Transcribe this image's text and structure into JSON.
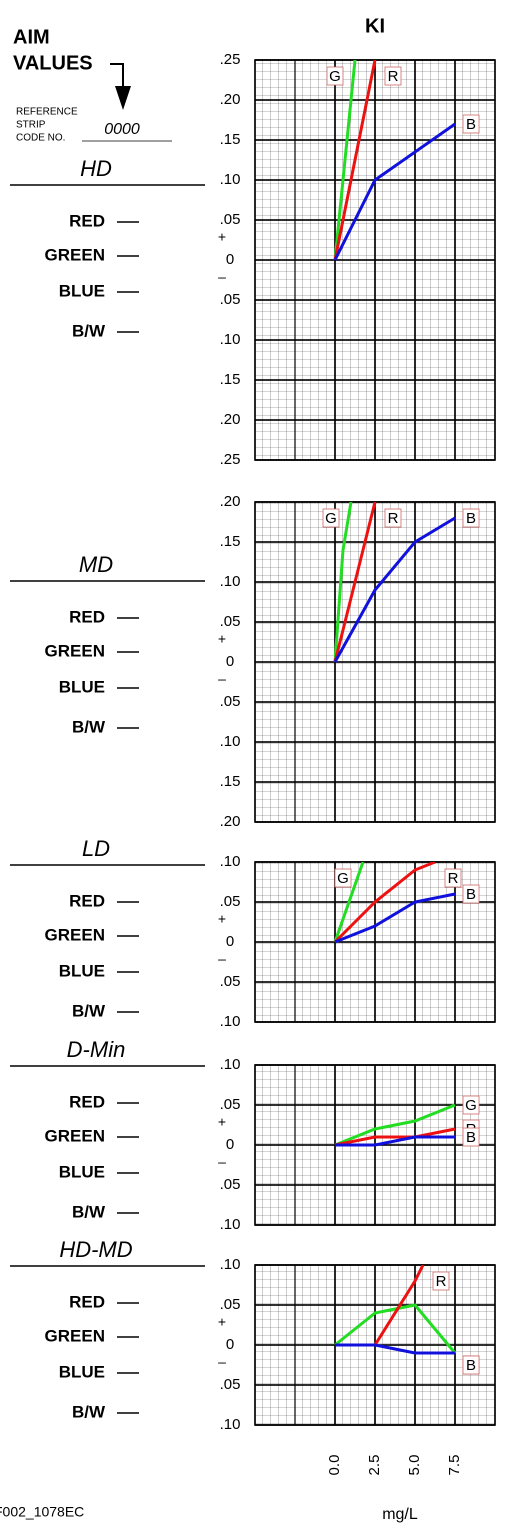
{
  "title": "KI",
  "x_label": "mg/L",
  "figure_id": "F002_1078EC",
  "aim_values": [
    "AIM",
    "VALUES"
  ],
  "reference_strip": [
    "REFERENCE",
    "STRIP",
    "CODE NO."
  ],
  "code_no": "0000",
  "row_labels": [
    "RED",
    "GREEN",
    "BLUE",
    "B/W"
  ],
  "sign_labels": [
    "+",
    "–"
  ],
  "xlim": [
    -5,
    10
  ],
  "xticks": [
    {
      "value": 0,
      "label": "0.0"
    },
    2.5,
    {
      "value": 5,
      "label": "5.0"
    },
    7.5
  ],
  "chart_data": [
    {
      "type": "line",
      "title": "HD",
      "ylim": [
        -0.25,
        0.25
      ],
      "yticks": [
        {
          "value": 0.25,
          "label": ".25"
        },
        {
          "value": 0.2,
          "label": ".20"
        },
        {
          "value": 0.15,
          "label": ".15"
        },
        {
          "value": 0.1,
          "label": ".10"
        },
        {
          "value": 0.05,
          "label": ".05"
        },
        0,
        {
          "value": -0.05,
          "label": ".05"
        },
        {
          "value": -0.1,
          "label": ".10"
        },
        {
          "value": -0.15,
          "label": ".15"
        },
        {
          "value": -0.2,
          "label": ".20"
        },
        {
          "value": -0.25,
          "label": ".25"
        }
      ],
      "series": [
        {
          "name": "G",
          "color": "#22dd22",
          "x": [
            0,
            1.25
          ],
          "values": [
            0,
            0.25
          ]
        },
        {
          "name": "R",
          "color": "#ee1111",
          "x": [
            0,
            2.5
          ],
          "values": [
            0,
            0.25
          ]
        },
        {
          "name": "B",
          "color": "#1111dd",
          "x": [
            0,
            2.5,
            7.5
          ],
          "values": [
            0,
            0.1,
            0.17
          ]
        }
      ]
    },
    {
      "type": "line",
      "title": "MD",
      "ylim": [
        -0.2,
        0.2
      ],
      "yticks": [
        {
          "value": 0.2,
          "label": ".20"
        },
        {
          "value": 0.15,
          "label": ".15"
        },
        {
          "value": 0.1,
          "label": ".10"
        },
        {
          "value": 0.05,
          "label": ".05"
        },
        0,
        {
          "value": -0.05,
          "label": ".05"
        },
        {
          "value": -0.1,
          "label": ".10"
        },
        {
          "value": -0.15,
          "label": ".15"
        },
        {
          "value": -0.2,
          "label": ".20"
        }
      ],
      "series": [
        {
          "name": "G",
          "color": "#22dd22",
          "x": [
            0,
            0.5,
            1
          ],
          "values": [
            0,
            0.14,
            0.2
          ]
        },
        {
          "name": "R",
          "color": "#ee1111",
          "x": [
            0,
            2.5
          ],
          "values": [
            0,
            0.2
          ]
        },
        {
          "name": "B",
          "color": "#1111dd",
          "x": [
            0,
            2.5,
            5,
            7.5
          ],
          "values": [
            0,
            0.09,
            0.15,
            0.18
          ]
        }
      ]
    },
    {
      "type": "line",
      "title": "LD",
      "ylim": [
        -0.1,
        0.1
      ],
      "yticks": [
        {
          "value": 0.1,
          "label": ".10"
        },
        {
          "value": 0.05,
          "label": ".05"
        },
        0,
        {
          "value": -0.05,
          "label": ".05"
        },
        {
          "value": -0.1,
          "label": ".10"
        }
      ],
      "series": [
        {
          "name": "G",
          "color": "#22dd22",
          "x": [
            0,
            1.75
          ],
          "values": [
            0,
            0.1
          ]
        },
        {
          "name": "R",
          "color": "#ee1111",
          "x": [
            0,
            2.5,
            5,
            6.25
          ],
          "values": [
            0,
            0.05,
            0.09,
            0.1
          ]
        },
        {
          "name": "B",
          "color": "#1111dd",
          "x": [
            0,
            2.5,
            5,
            7.5
          ],
          "values": [
            0,
            0.02,
            0.05,
            0.06
          ]
        }
      ]
    },
    {
      "type": "line",
      "title": "D-Min",
      "ylim": [
        -0.1,
        0.1
      ],
      "yticks": [
        {
          "value": 0.1,
          "label": ".10"
        },
        {
          "value": 0.05,
          "label": ".05"
        },
        0,
        {
          "value": -0.05,
          "label": ".05"
        },
        {
          "value": -0.1,
          "label": ".10"
        }
      ],
      "series": [
        {
          "name": "G",
          "color": "#22dd22",
          "x": [
            0,
            2.5,
            5,
            7.5
          ],
          "values": [
            0,
            0.02,
            0.03,
            0.05
          ]
        },
        {
          "name": "R",
          "color": "#ee1111",
          "x": [
            0,
            2.5,
            5,
            7.5
          ],
          "values": [
            0,
            0.01,
            0.01,
            0.02
          ]
        },
        {
          "name": "B",
          "color": "#1111dd",
          "x": [
            0,
            2.5,
            5,
            7.5
          ],
          "values": [
            0,
            0,
            0.01,
            0.01
          ]
        }
      ]
    },
    {
      "type": "line",
      "title": "HD-MD",
      "ylim": [
        -0.1,
        0.1
      ],
      "yticks": [
        {
          "value": 0.1,
          "label": ".10"
        },
        {
          "value": 0.05,
          "label": ".05"
        },
        0,
        {
          "value": -0.05,
          "label": ".05"
        },
        {
          "value": -0.1,
          "label": ".10"
        }
      ],
      "series": [
        {
          "name": "G",
          "color": "#22dd22",
          "x": [
            0,
            2.5,
            5,
            7.5
          ],
          "values": [
            0,
            0.04,
            0.05,
            -0.01
          ]
        },
        {
          "name": "R",
          "color": "#ee1111",
          "x": [
            0,
            2.5,
            5,
            5.5
          ],
          "values": [
            0,
            0,
            0.08,
            0.1
          ]
        },
        {
          "name": "B",
          "color": "#1111dd",
          "x": [
            0,
            2.5,
            5,
            7.5
          ],
          "values": [
            0,
            0,
            -0.01,
            -0.01
          ]
        }
      ]
    }
  ]
}
